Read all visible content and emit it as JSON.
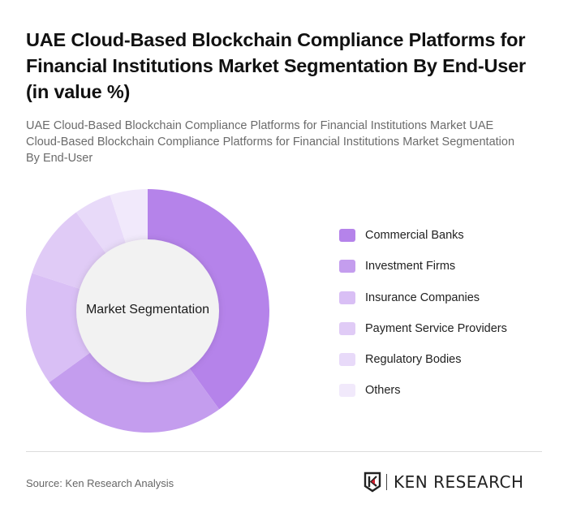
{
  "header": {
    "title": "UAE Cloud-Based Blockchain Compliance Platforms for Financial Institutions Market Segmentation By End-User (in value %)",
    "subtitle": "UAE Cloud-Based Blockchain Compliance Platforms for Financial Institutions Market UAE Cloud-Based Blockchain Compliance Platforms for Financial Institutions Market Segmentation By End-User"
  },
  "chart": {
    "center_label": "Market Segmentation"
  },
  "legend": {
    "items": [
      {
        "label": "Commercial Banks",
        "color": "#B583EA"
      },
      {
        "label": "Investment Firms",
        "color": "#C49DEE"
      },
      {
        "label": "Insurance Companies",
        "color": "#D9BFF5"
      },
      {
        "label": "Payment Service Providers",
        "color": "#E0CBF6"
      },
      {
        "label": "Regulatory Bodies",
        "color": "#E8DAF9"
      },
      {
        "label": "Others",
        "color": "#F1E9FB"
      }
    ]
  },
  "footer": {
    "source": "Source: Ken Research Analysis",
    "logo_text": "KEN RESEARCH"
  },
  "chart_data": {
    "type": "pie",
    "variant": "donut",
    "title": "UAE Cloud-Based Blockchain Compliance Platforms for Financial Institutions Market Segmentation By End-User (in value %)",
    "center_label": "Market Segmentation",
    "categories": [
      "Commercial Banks",
      "Investment Firms",
      "Insurance Companies",
      "Payment Service Providers",
      "Regulatory Bodies",
      "Others"
    ],
    "values": [
      40,
      25,
      15,
      10,
      5,
      5
    ],
    "colors": [
      "#B583EA",
      "#C49DEE",
      "#D9BFF5",
      "#E0CBF6",
      "#E8DAF9",
      "#F1E9FB"
    ],
    "unit": "%",
    "legend_position": "right"
  }
}
